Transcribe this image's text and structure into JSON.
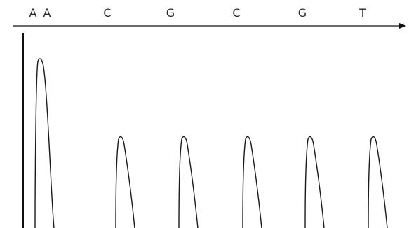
{
  "sequence_labels": [
    "A",
    "A",
    "C",
    "G",
    "C",
    "G",
    "T"
  ],
  "peaks": [
    {
      "base": "A",
      "height": 2
    },
    {
      "base": "C",
      "height": 1
    },
    {
      "base": "G",
      "height": 1
    },
    {
      "base": "C",
      "height": 1
    },
    {
      "base": "G",
      "height": 1
    },
    {
      "base": "T",
      "height": 1
    }
  ],
  "colors": {
    "ink": "#1a1a1a",
    "label": "#2a2a2a",
    "background": "#ffffff"
  }
}
